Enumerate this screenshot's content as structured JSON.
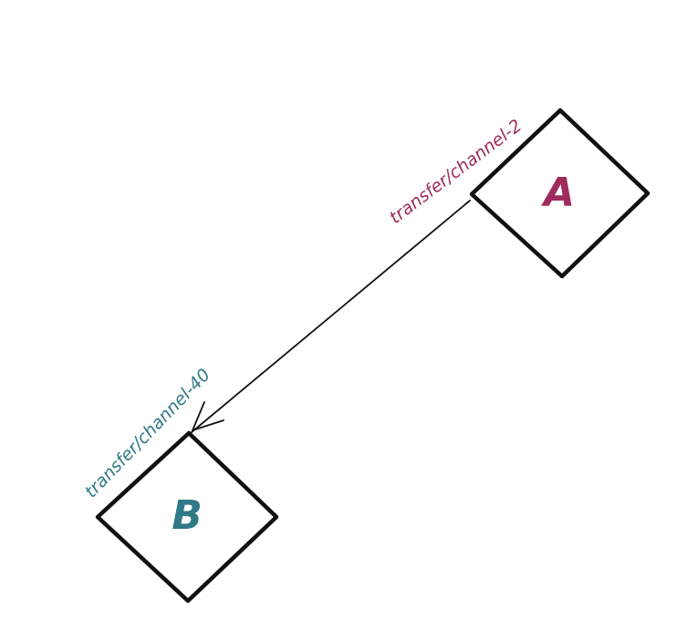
{
  "nodes": {
    "a": {
      "label": "A",
      "color": "#a02b5d"
    },
    "b": {
      "label": "B",
      "color": "#2f7a86"
    }
  },
  "edge": {
    "from": "A",
    "to": "B",
    "source_label": "transfer/channel-2",
    "target_label": "transfer/channel-40"
  }
}
